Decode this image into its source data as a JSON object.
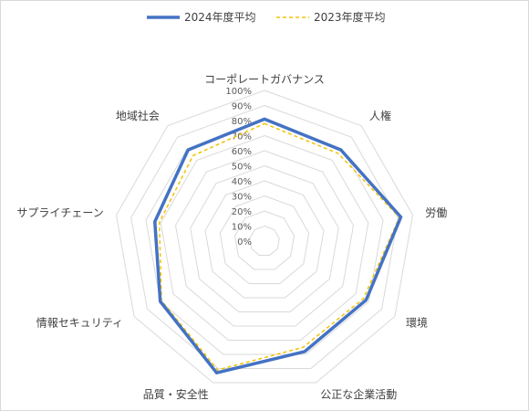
{
  "chart_data": {
    "type": "radar",
    "categories": [
      "コーポレートガバナンス",
      "人権",
      "労働",
      "環境",
      "公正な企業活動",
      "品質・安全性",
      "情報セキュリティ",
      "サプライチェーン",
      "地域社会"
    ],
    "series": [
      {
        "name": "2024年度平均",
        "values": [
          81,
          79,
          92,
          78,
          78,
          93,
          80,
          74,
          79
        ],
        "color": "#4472c4",
        "style": "solid"
      },
      {
        "name": "2023年度平均",
        "values": [
          78,
          76,
          91,
          76,
          75,
          91,
          79,
          71,
          74
        ],
        "color": "#f2c200",
        "style": "dashed"
      }
    ],
    "rlim": [
      0,
      100
    ],
    "ticks": [
      "0%",
      "10%",
      "20%",
      "30%",
      "40%",
      "50%",
      "60%",
      "70%",
      "80%",
      "90%",
      "100%"
    ],
    "legend_position": "top",
    "grid": true
  }
}
